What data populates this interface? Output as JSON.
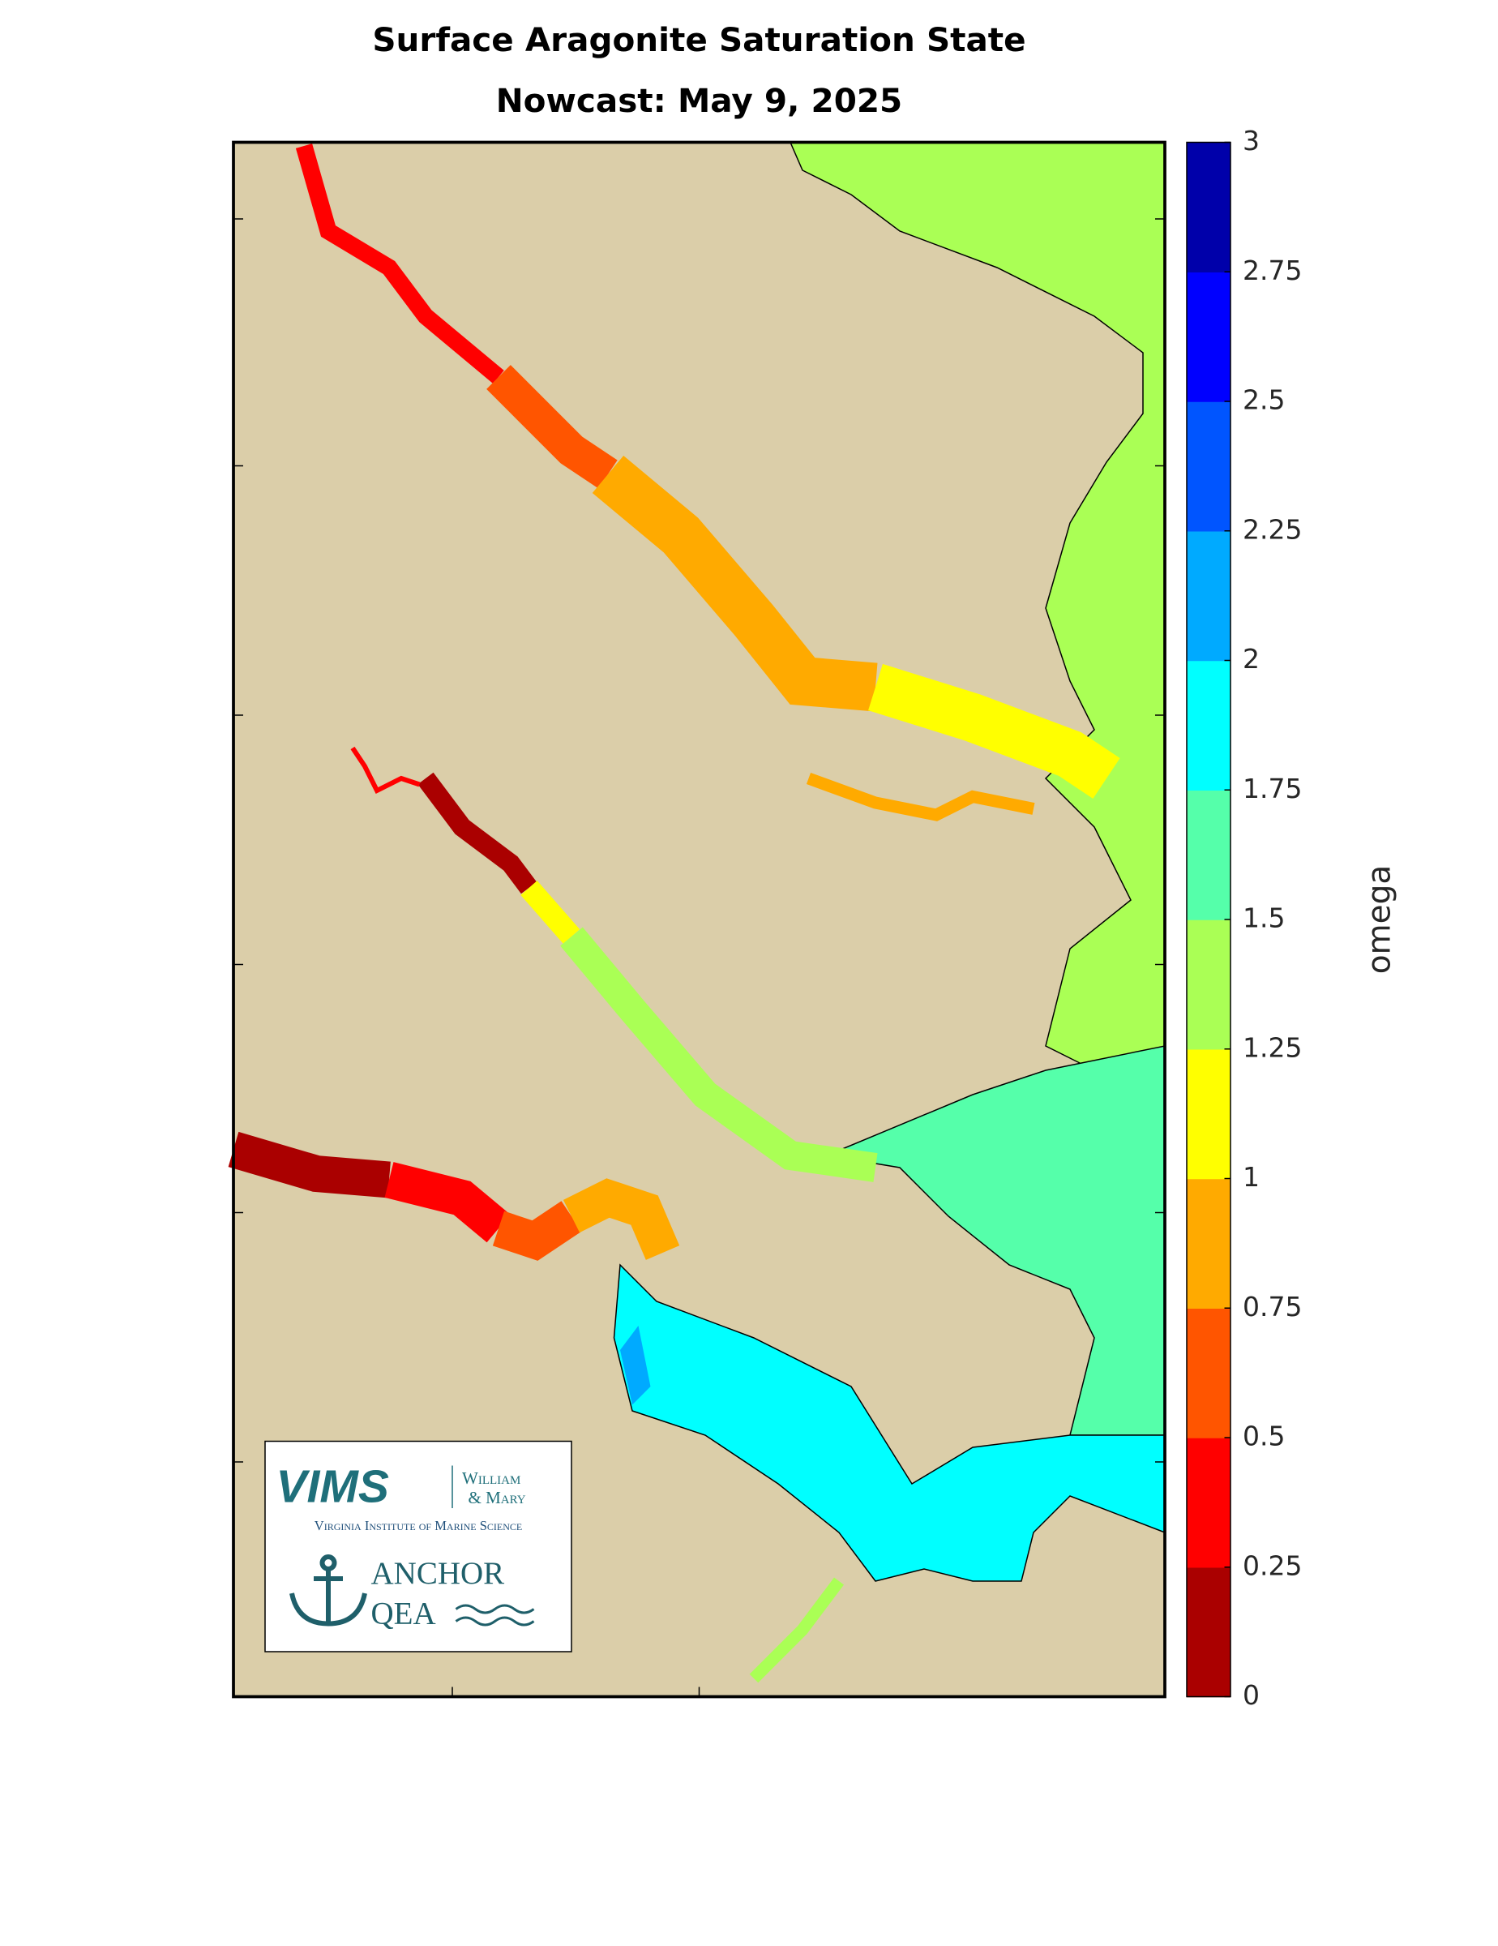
{
  "title": [
    "Surface Aragonite Saturation State",
    "Nowcast: May 9, 2025"
  ],
  "colorbar": {
    "label": "omega",
    "lim": [
      0,
      3
    ],
    "ticks": [
      0,
      0.25,
      0.5,
      0.75,
      1,
      1.25,
      1.5,
      1.75,
      2,
      2.25,
      2.5,
      2.75,
      3
    ],
    "colors": [
      "#aa0000",
      "#ff0000",
      "#ff5500",
      "#ffaa00",
      "#ffff00",
      "#aaff55",
      "#55ffaa",
      "#00ffff",
      "#00aaff",
      "#0055ff",
      "#0000ff",
      "#0000aa"
    ]
  },
  "logo": {
    "vims": "VIMS",
    "william": "William",
    "mary": "& Mary",
    "institute": "Virginia Institute of Marine Science",
    "anchor": "ANCHOR",
    "qea": "QEA"
  }
}
